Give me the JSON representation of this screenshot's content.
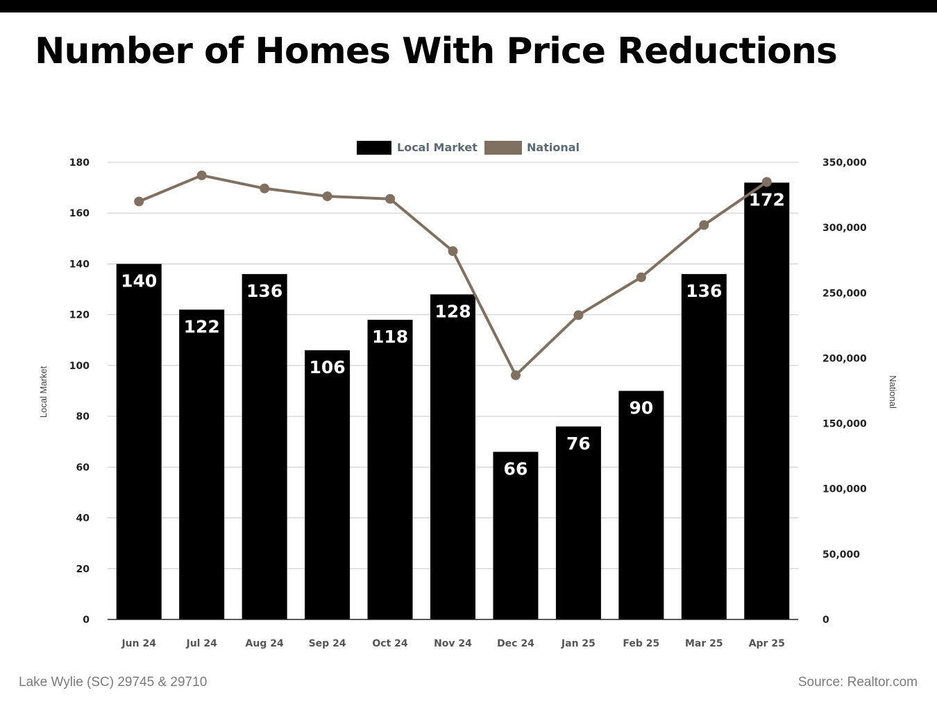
{
  "header": {
    "title": "Number of Homes With Price Reductions"
  },
  "footer": {
    "location": "Lake Wylie (SC) 29745 & 29710",
    "source": "Source: Realtor.com"
  },
  "chart_data": {
    "type": "bar",
    "title": "Number of Homes With Price Reductions",
    "categories": [
      "Jun 24",
      "Jul 24",
      "Aug 24",
      "Sep 24",
      "Oct 24",
      "Nov 24",
      "Dec 24",
      "Jan 25",
      "Feb 25",
      "Mar 25",
      "Apr 25"
    ],
    "series": [
      {
        "name": "Local Market",
        "type": "bar",
        "axis": "left",
        "color": "#000000",
        "values": [
          140,
          122,
          136,
          106,
          118,
          128,
          66,
          76,
          90,
          136,
          172
        ]
      },
      {
        "name": "National",
        "type": "line",
        "axis": "right",
        "color": "#7f7060",
        "values": [
          320000,
          340000,
          330000,
          324000,
          322000,
          282000,
          187000,
          233000,
          262000,
          302000,
          335000
        ]
      }
    ],
    "ylabel": "Local Market",
    "y2label": "National",
    "ylim": [
      0,
      180
    ],
    "y2lim": [
      0,
      350000
    ],
    "yticks": [
      "0",
      "20",
      "40",
      "60",
      "80",
      "100",
      "120",
      "140",
      "160",
      "180"
    ],
    "y2ticks": [
      "0",
      "50,000",
      "100,000",
      "150,000",
      "200,000",
      "250,000",
      "300,000",
      "350,000"
    ],
    "grid": true,
    "legend": "top-center",
    "data_labels": true
  }
}
